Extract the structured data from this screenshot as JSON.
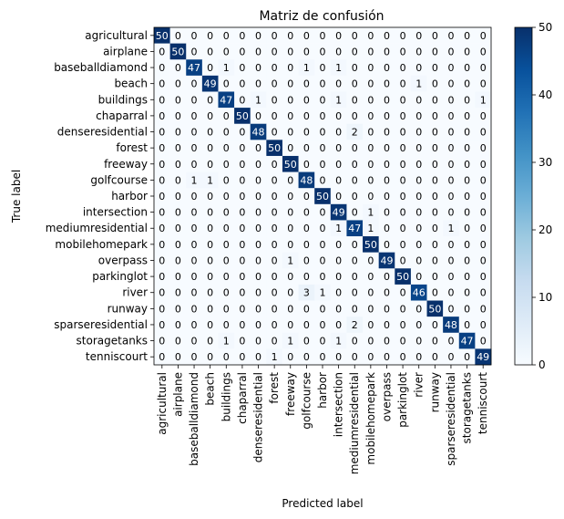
{
  "chart_data": {
    "type": "heatmap",
    "title": "Matriz de confusión",
    "xlabel": "Predicted label",
    "ylabel": "True label",
    "labels": [
      "agricultural",
      "airplane",
      "baseballdiamond",
      "beach",
      "buildings",
      "chaparral",
      "denseresidential",
      "forest",
      "freeway",
      "golfcourse",
      "harbor",
      "intersection",
      "mediumresidential",
      "mobilehomepark",
      "overpass",
      "parkinglot",
      "river",
      "runway",
      "sparseresidential",
      "storagetanks",
      "tenniscourt"
    ],
    "matrix": [
      [
        50,
        0,
        0,
        0,
        0,
        0,
        0,
        0,
        0,
        0,
        0,
        0,
        0,
        0,
        0,
        0,
        0,
        0,
        0,
        0,
        0
      ],
      [
        0,
        50,
        0,
        0,
        0,
        0,
        0,
        0,
        0,
        0,
        0,
        0,
        0,
        0,
        0,
        0,
        0,
        0,
        0,
        0,
        0
      ],
      [
        0,
        0,
        47,
        0,
        1,
        0,
        0,
        0,
        0,
        1,
        0,
        1,
        0,
        0,
        0,
        0,
        0,
        0,
        0,
        0,
        0
      ],
      [
        0,
        0,
        0,
        49,
        0,
        0,
        0,
        0,
        0,
        0,
        0,
        0,
        0,
        0,
        0,
        0,
        1,
        0,
        0,
        0,
        0
      ],
      [
        0,
        0,
        0,
        0,
        47,
        0,
        1,
        0,
        0,
        0,
        0,
        1,
        0,
        0,
        0,
        0,
        0,
        0,
        0,
        0,
        1
      ],
      [
        0,
        0,
        0,
        0,
        0,
        50,
        0,
        0,
        0,
        0,
        0,
        0,
        0,
        0,
        0,
        0,
        0,
        0,
        0,
        0,
        0
      ],
      [
        0,
        0,
        0,
        0,
        0,
        0,
        48,
        0,
        0,
        0,
        0,
        0,
        2,
        0,
        0,
        0,
        0,
        0,
        0,
        0,
        0
      ],
      [
        0,
        0,
        0,
        0,
        0,
        0,
        0,
        50,
        0,
        0,
        0,
        0,
        0,
        0,
        0,
        0,
        0,
        0,
        0,
        0,
        0
      ],
      [
        0,
        0,
        0,
        0,
        0,
        0,
        0,
        0,
        50,
        0,
        0,
        0,
        0,
        0,
        0,
        0,
        0,
        0,
        0,
        0,
        0
      ],
      [
        0,
        0,
        1,
        1,
        0,
        0,
        0,
        0,
        0,
        48,
        0,
        0,
        0,
        0,
        0,
        0,
        0,
        0,
        0,
        0,
        0
      ],
      [
        0,
        0,
        0,
        0,
        0,
        0,
        0,
        0,
        0,
        0,
        50,
        0,
        0,
        0,
        0,
        0,
        0,
        0,
        0,
        0,
        0
      ],
      [
        0,
        0,
        0,
        0,
        0,
        0,
        0,
        0,
        0,
        0,
        0,
        49,
        0,
        1,
        0,
        0,
        0,
        0,
        0,
        0,
        0
      ],
      [
        0,
        0,
        0,
        0,
        0,
        0,
        0,
        0,
        0,
        0,
        0,
        1,
        47,
        1,
        0,
        0,
        0,
        0,
        1,
        0,
        0
      ],
      [
        0,
        0,
        0,
        0,
        0,
        0,
        0,
        0,
        0,
        0,
        0,
        0,
        0,
        50,
        0,
        0,
        0,
        0,
        0,
        0,
        0
      ],
      [
        0,
        0,
        0,
        0,
        0,
        0,
        0,
        0,
        1,
        0,
        0,
        0,
        0,
        0,
        49,
        0,
        0,
        0,
        0,
        0,
        0
      ],
      [
        0,
        0,
        0,
        0,
        0,
        0,
        0,
        0,
        0,
        0,
        0,
        0,
        0,
        0,
        0,
        50,
        0,
        0,
        0,
        0,
        0
      ],
      [
        0,
        0,
        0,
        0,
        0,
        0,
        0,
        0,
        0,
        3,
        1,
        0,
        0,
        0,
        0,
        0,
        46,
        0,
        0,
        0,
        0
      ],
      [
        0,
        0,
        0,
        0,
        0,
        0,
        0,
        0,
        0,
        0,
        0,
        0,
        0,
        0,
        0,
        0,
        0,
        50,
        0,
        0,
        0
      ],
      [
        0,
        0,
        0,
        0,
        0,
        0,
        0,
        0,
        0,
        0,
        0,
        0,
        2,
        0,
        0,
        0,
        0,
        0,
        48,
        0,
        0
      ],
      [
        0,
        0,
        0,
        0,
        1,
        0,
        0,
        0,
        1,
        0,
        0,
        1,
        0,
        0,
        0,
        0,
        0,
        0,
        0,
        47,
        0
      ],
      [
        0,
        0,
        0,
        0,
        0,
        0,
        0,
        1,
        0,
        0,
        0,
        0,
        0,
        0,
        0,
        0,
        0,
        0,
        0,
        0,
        49
      ]
    ],
    "vmin": 0,
    "vmax": 50,
    "colorbar_ticks": [
      0,
      10,
      20,
      30,
      40,
      50
    ],
    "colormap": "Blues",
    "colormap_low": "#f7fbff",
    "colormap_high": "#08306b"
  }
}
